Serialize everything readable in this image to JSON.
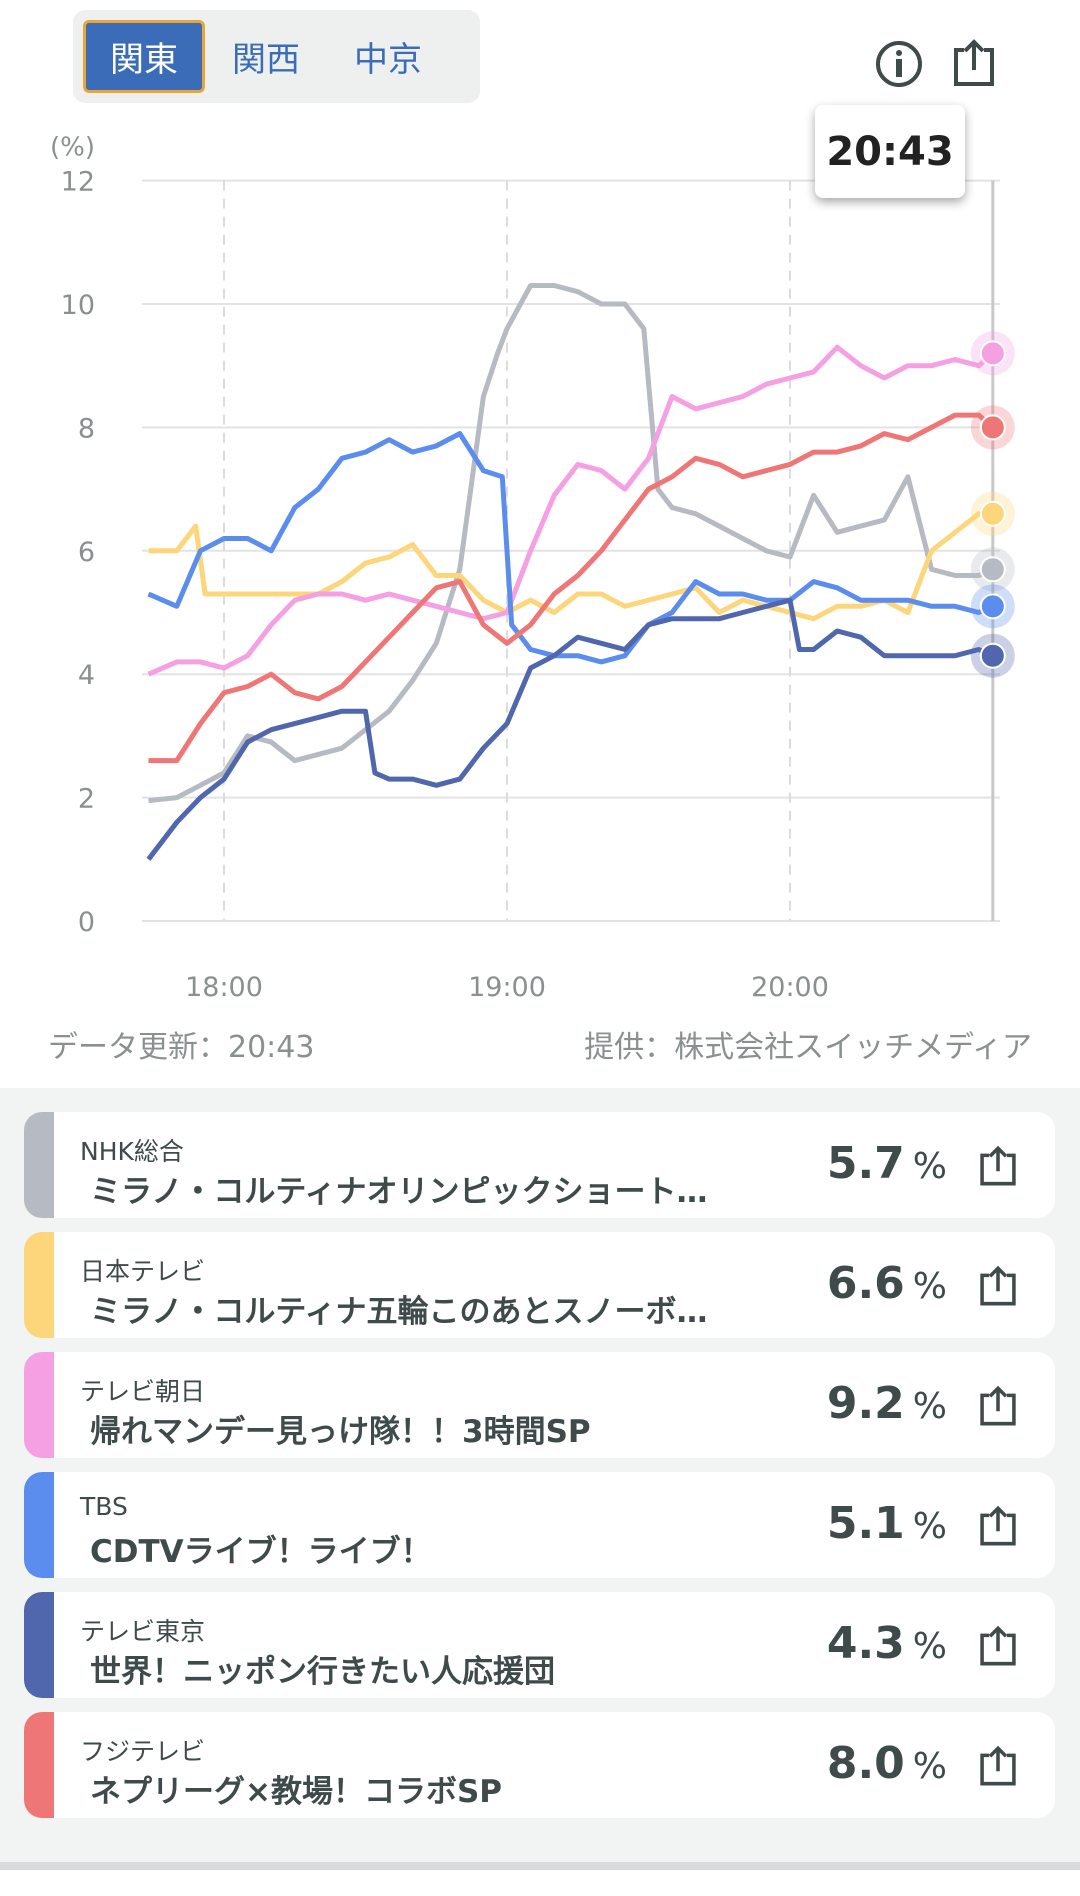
{
  "regions": [
    {
      "label": "関東",
      "active": true
    },
    {
      "label": "関西",
      "active": false
    },
    {
      "label": "中京",
      "active": false
    }
  ],
  "icons": {
    "info": "info-icon",
    "share": "share-icon"
  },
  "tooltip_time": "20:43",
  "footer": {
    "updated": "データ更新：20:43",
    "provider": "提供：株式会社スイッチメディア"
  },
  "chart_data": {
    "type": "line",
    "ylabel": "(%)",
    "ylim": [
      0,
      12
    ],
    "yticks": [
      0,
      2,
      4,
      6,
      8,
      10,
      12
    ],
    "xticks": [
      {
        "label": "18:00",
        "min": 60
      },
      {
        "label": "19:00",
        "min": 120
      },
      {
        "label": "20:00",
        "min": 180
      }
    ],
    "xlim_minutes_after_17": [
      44,
      223
    ],
    "cursor_min": 223,
    "grid": true,
    "series": [
      {
        "name": "NHK総合",
        "color": "#b5bac3",
        "points": [
          [
            44,
            1.95
          ],
          [
            50,
            2.0
          ],
          [
            55,
            2.2
          ],
          [
            60,
            2.4
          ],
          [
            65,
            3.0
          ],
          [
            70,
            2.9
          ],
          [
            75,
            2.6
          ],
          [
            80,
            2.7
          ],
          [
            85,
            2.8
          ],
          [
            90,
            3.1
          ],
          [
            95,
            3.4
          ],
          [
            100,
            3.9
          ],
          [
            105,
            4.5
          ],
          [
            110,
            5.7
          ],
          [
            115,
            8.5
          ],
          [
            118,
            9.2
          ],
          [
            120,
            9.6
          ],
          [
            125,
            10.3
          ],
          [
            130,
            10.3
          ],
          [
            135,
            10.2
          ],
          [
            140,
            10.0
          ],
          [
            145,
            10.0
          ],
          [
            149,
            9.6
          ],
          [
            152,
            7.0
          ],
          [
            155,
            6.7
          ],
          [
            160,
            6.6
          ],
          [
            165,
            6.4
          ],
          [
            170,
            6.2
          ],
          [
            175,
            6.0
          ],
          [
            180,
            5.9
          ],
          [
            185,
            6.9
          ],
          [
            190,
            6.3
          ],
          [
            195,
            6.4
          ],
          [
            200,
            6.5
          ],
          [
            205,
            7.2
          ],
          [
            210,
            5.7
          ],
          [
            215,
            5.6
          ],
          [
            220,
            5.6
          ],
          [
            223,
            5.7
          ]
        ]
      },
      {
        "name": "日本テレビ",
        "color": "#fdd57a",
        "points": [
          [
            44,
            6.0
          ],
          [
            50,
            6.0
          ],
          [
            54,
            6.4
          ],
          [
            56,
            5.3
          ],
          [
            60,
            5.3
          ],
          [
            65,
            5.3
          ],
          [
            70,
            5.3
          ],
          [
            75,
            5.3
          ],
          [
            80,
            5.3
          ],
          [
            85,
            5.5
          ],
          [
            90,
            5.8
          ],
          [
            95,
            5.9
          ],
          [
            100,
            6.1
          ],
          [
            105,
            5.6
          ],
          [
            110,
            5.6
          ],
          [
            115,
            5.2
          ],
          [
            120,
            5.0
          ],
          [
            125,
            5.2
          ],
          [
            130,
            5.0
          ],
          [
            135,
            5.3
          ],
          [
            140,
            5.3
          ],
          [
            145,
            5.1
          ],
          [
            150,
            5.2
          ],
          [
            155,
            5.3
          ],
          [
            160,
            5.4
          ],
          [
            165,
            5.0
          ],
          [
            170,
            5.2
          ],
          [
            175,
            5.1
          ],
          [
            180,
            5.0
          ],
          [
            185,
            4.9
          ],
          [
            190,
            5.1
          ],
          [
            195,
            5.1
          ],
          [
            200,
            5.2
          ],
          [
            205,
            5.0
          ],
          [
            210,
            6.0
          ],
          [
            215,
            6.3
          ],
          [
            220,
            6.6
          ],
          [
            223,
            6.6
          ]
        ]
      },
      {
        "name": "テレビ朝日",
        "color": "#f4a0e2",
        "points": [
          [
            44,
            4.0
          ],
          [
            50,
            4.2
          ],
          [
            55,
            4.2
          ],
          [
            60,
            4.1
          ],
          [
            65,
            4.3
          ],
          [
            70,
            4.8
          ],
          [
            75,
            5.2
          ],
          [
            80,
            5.3
          ],
          [
            85,
            5.3
          ],
          [
            90,
            5.2
          ],
          [
            95,
            5.3
          ],
          [
            100,
            5.2
          ],
          [
            105,
            5.1
          ],
          [
            110,
            5.0
          ],
          [
            115,
            4.9
          ],
          [
            120,
            5.0
          ],
          [
            125,
            6.0
          ],
          [
            130,
            6.9
          ],
          [
            135,
            7.4
          ],
          [
            140,
            7.3
          ],
          [
            145,
            7.0
          ],
          [
            150,
            7.5
          ],
          [
            155,
            8.5
          ],
          [
            160,
            8.3
          ],
          [
            165,
            8.4
          ],
          [
            170,
            8.5
          ],
          [
            175,
            8.7
          ],
          [
            180,
            8.8
          ],
          [
            185,
            8.9
          ],
          [
            190,
            9.3
          ],
          [
            195,
            9.0
          ],
          [
            200,
            8.8
          ],
          [
            205,
            9.0
          ],
          [
            210,
            9.0
          ],
          [
            215,
            9.1
          ],
          [
            220,
            9.0
          ],
          [
            223,
            9.2
          ]
        ]
      },
      {
        "name": "TBS",
        "color": "#5b8def",
        "points": [
          [
            44,
            5.3
          ],
          [
            50,
            5.1
          ],
          [
            55,
            6.0
          ],
          [
            60,
            6.2
          ],
          [
            65,
            6.2
          ],
          [
            70,
            6.0
          ],
          [
            75,
            6.7
          ],
          [
            80,
            7.0
          ],
          [
            85,
            7.5
          ],
          [
            90,
            7.6
          ],
          [
            95,
            7.8
          ],
          [
            100,
            7.6
          ],
          [
            105,
            7.7
          ],
          [
            110,
            7.9
          ],
          [
            115,
            7.3
          ],
          [
            119,
            7.2
          ],
          [
            121,
            4.8
          ],
          [
            125,
            4.4
          ],
          [
            130,
            4.3
          ],
          [
            135,
            4.3
          ],
          [
            140,
            4.2
          ],
          [
            145,
            4.3
          ],
          [
            150,
            4.8
          ],
          [
            155,
            5.0
          ],
          [
            160,
            5.5
          ],
          [
            165,
            5.3
          ],
          [
            170,
            5.3
          ],
          [
            175,
            5.2
          ],
          [
            180,
            5.2
          ],
          [
            185,
            5.5
          ],
          [
            190,
            5.4
          ],
          [
            195,
            5.2
          ],
          [
            200,
            5.2
          ],
          [
            205,
            5.2
          ],
          [
            210,
            5.1
          ],
          [
            215,
            5.1
          ],
          [
            220,
            5.0
          ],
          [
            223,
            5.1
          ]
        ]
      },
      {
        "name": "テレビ東京",
        "color": "#5067ad",
        "points": [
          [
            44,
            1.0
          ],
          [
            50,
            1.6
          ],
          [
            55,
            2.0
          ],
          [
            60,
            2.3
          ],
          [
            65,
            2.9
          ],
          [
            70,
            3.1
          ],
          [
            75,
            3.2
          ],
          [
            80,
            3.3
          ],
          [
            85,
            3.4
          ],
          [
            90,
            3.4
          ],
          [
            92,
            2.4
          ],
          [
            95,
            2.3
          ],
          [
            100,
            2.3
          ],
          [
            105,
            2.2
          ],
          [
            110,
            2.3
          ],
          [
            115,
            2.8
          ],
          [
            120,
            3.2
          ],
          [
            125,
            4.1
          ],
          [
            130,
            4.3
          ],
          [
            135,
            4.6
          ],
          [
            140,
            4.5
          ],
          [
            145,
            4.4
          ],
          [
            150,
            4.8
          ],
          [
            155,
            4.9
          ],
          [
            160,
            4.9
          ],
          [
            165,
            4.9
          ],
          [
            170,
            5.0
          ],
          [
            175,
            5.1
          ],
          [
            180,
            5.2
          ],
          [
            182,
            4.4
          ],
          [
            185,
            4.4
          ],
          [
            190,
            4.7
          ],
          [
            195,
            4.6
          ],
          [
            200,
            4.3
          ],
          [
            205,
            4.3
          ],
          [
            210,
            4.3
          ],
          [
            215,
            4.3
          ],
          [
            220,
            4.4
          ],
          [
            223,
            4.3
          ]
        ]
      },
      {
        "name": "フジテレビ",
        "color": "#ef7676",
        "points": [
          [
            44,
            2.6
          ],
          [
            50,
            2.6
          ],
          [
            55,
            3.2
          ],
          [
            60,
            3.7
          ],
          [
            65,
            3.8
          ],
          [
            70,
            4.0
          ],
          [
            75,
            3.7
          ],
          [
            80,
            3.6
          ],
          [
            85,
            3.8
          ],
          [
            90,
            4.2
          ],
          [
            95,
            4.6
          ],
          [
            100,
            5.0
          ],
          [
            105,
            5.4
          ],
          [
            110,
            5.5
          ],
          [
            115,
            4.8
          ],
          [
            120,
            4.5
          ],
          [
            125,
            4.8
          ],
          [
            130,
            5.3
          ],
          [
            135,
            5.6
          ],
          [
            140,
            6.0
          ],
          [
            145,
            6.5
          ],
          [
            150,
            7.0
          ],
          [
            155,
            7.2
          ],
          [
            160,
            7.5
          ],
          [
            165,
            7.4
          ],
          [
            170,
            7.2
          ],
          [
            175,
            7.3
          ],
          [
            180,
            7.4
          ],
          [
            185,
            7.6
          ],
          [
            190,
            7.6
          ],
          [
            195,
            7.7
          ],
          [
            200,
            7.9
          ],
          [
            205,
            7.8
          ],
          [
            210,
            8.0
          ],
          [
            215,
            8.2
          ],
          [
            220,
            8.2
          ],
          [
            223,
            8.0
          ]
        ]
      }
    ]
  },
  "programs": [
    {
      "station": "NHK総合",
      "title": "ミラノ・コルティナオリンピックショート…",
      "value": "5.7",
      "unit": "%",
      "color": "#b5bac3"
    },
    {
      "station": "日本テレビ",
      "title": "ミラノ・コルティナ五輪このあとスノーボ…",
      "value": "6.6",
      "unit": "%",
      "color": "#fdd57a"
    },
    {
      "station": "テレビ朝日",
      "title": "帰れマンデー見っけ隊！！3時間SP",
      "value": "9.2",
      "unit": "%",
      "color": "#f4a0e2"
    },
    {
      "station": "TBS",
      "title": "CDTVライブ！ライブ！",
      "value": "5.1",
      "unit": "%",
      "color": "#5b8def"
    },
    {
      "station": "テレビ東京",
      "title": "世界！ニッポン行きたい人応援団",
      "value": "4.3",
      "unit": "%",
      "color": "#5067ad"
    },
    {
      "station": "フジテレビ",
      "title": "ネプリーグ×教場！コラボSP",
      "value": "8.0",
      "unit": "%",
      "color": "#ef7676"
    }
  ]
}
